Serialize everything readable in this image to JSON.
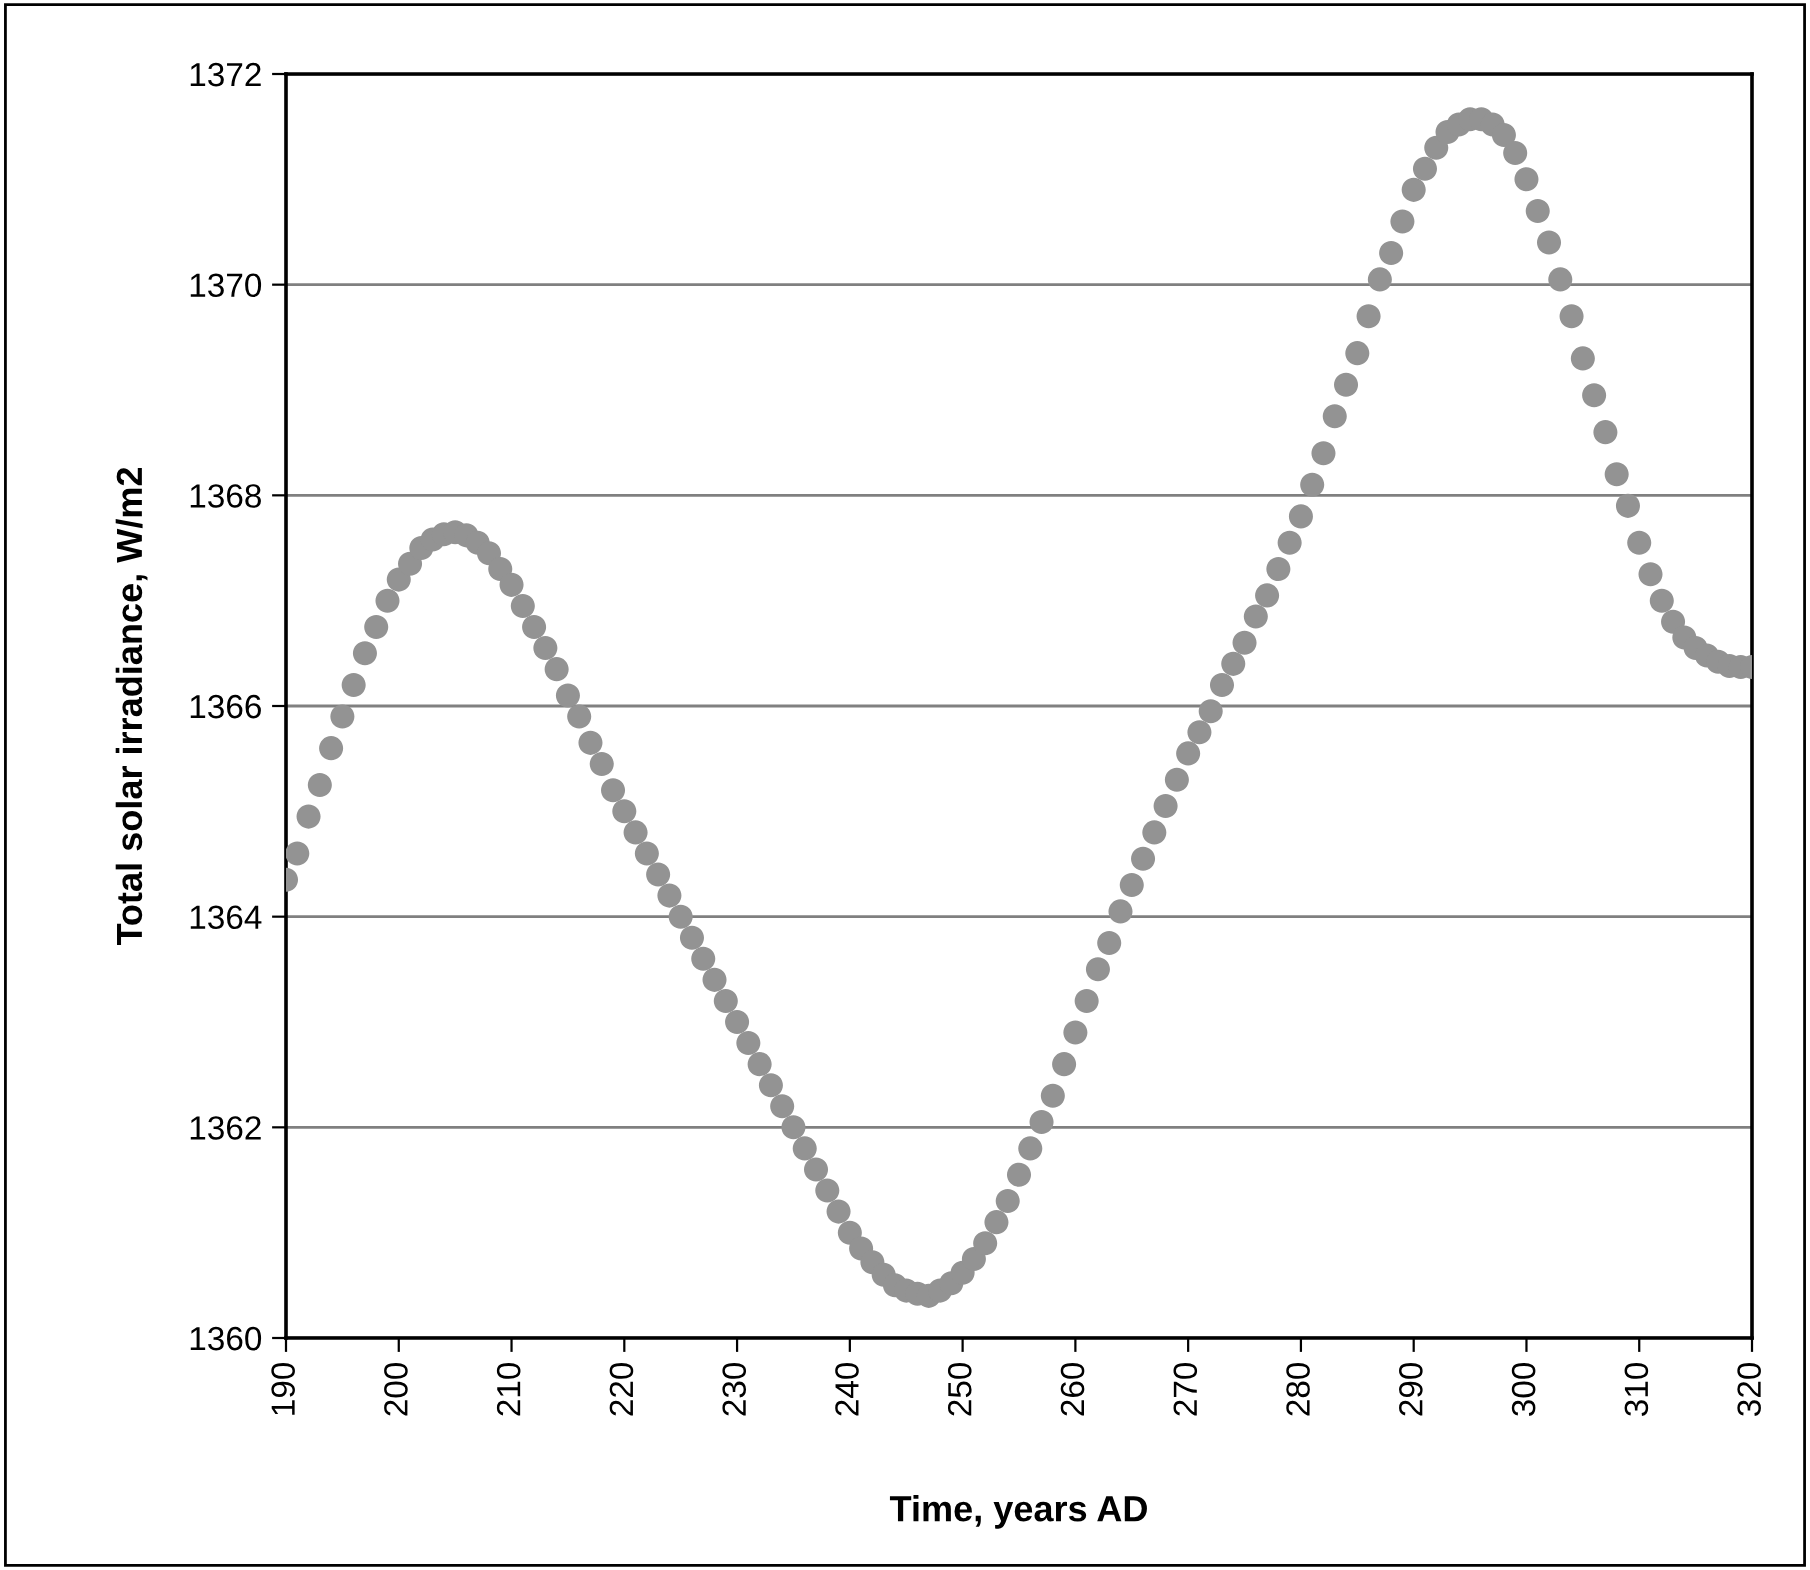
{
  "chart_data": {
    "type": "scatter",
    "xlabel": "Time, years AD",
    "ylabel": "Total solar irradiance, W/m2",
    "x": [
      190,
      191,
      192,
      193,
      194,
      195,
      196,
      197,
      198,
      199,
      200,
      201,
      202,
      203,
      204,
      205,
      206,
      207,
      208,
      209,
      210,
      211,
      212,
      213,
      214,
      215,
      216,
      217,
      218,
      219,
      220,
      221,
      222,
      223,
      224,
      225,
      226,
      227,
      228,
      229,
      230,
      231,
      232,
      233,
      234,
      235,
      236,
      237,
      238,
      239,
      240,
      241,
      242,
      243,
      244,
      245,
      246,
      247,
      248,
      249,
      250,
      251,
      252,
      253,
      254,
      255,
      256,
      257,
      258,
      259,
      260,
      261,
      262,
      263,
      264,
      265,
      266,
      267,
      268,
      269,
      270,
      271,
      272,
      273,
      274,
      275,
      276,
      277,
      278,
      279,
      280,
      281,
      282,
      283,
      284,
      285,
      286,
      287,
      288,
      289,
      290,
      291,
      292,
      293,
      294,
      295,
      296,
      297,
      298,
      299,
      300,
      301,
      302,
      303,
      304,
      305,
      306,
      307,
      308,
      309,
      310,
      311,
      312,
      313,
      314,
      315,
      316,
      317,
      318,
      319,
      320
    ],
    "series": [
      {
        "color": "#939393",
        "values": [
          1364.35,
          1364.6,
          1364.95,
          1365.25,
          1365.6,
          1365.9,
          1366.2,
          1366.5,
          1366.75,
          1367.0,
          1367.2,
          1367.35,
          1367.5,
          1367.58,
          1367.63,
          1367.65,
          1367.62,
          1367.55,
          1367.45,
          1367.3,
          1367.15,
          1366.95,
          1366.75,
          1366.55,
          1366.35,
          1366.1,
          1365.9,
          1365.65,
          1365.45,
          1365.2,
          1365.0,
          1364.8,
          1364.6,
          1364.4,
          1364.2,
          1364.0,
          1363.8,
          1363.6,
          1363.4,
          1363.2,
          1363.0,
          1362.8,
          1362.6,
          1362.4,
          1362.2,
          1362.0,
          1361.8,
          1361.6,
          1361.4,
          1361.2,
          1361.0,
          1360.85,
          1360.72,
          1360.6,
          1360.5,
          1360.45,
          1360.42,
          1360.4,
          1360.45,
          1360.52,
          1360.62,
          1360.75,
          1360.9,
          1361.1,
          1361.3,
          1361.55,
          1361.8,
          1362.05,
          1362.3,
          1362.6,
          1362.9,
          1363.2,
          1363.5,
          1363.75,
          1364.05,
          1364.3,
          1364.55,
          1364.8,
          1365.05,
          1365.3,
          1365.55,
          1365.75,
          1365.95,
          1366.2,
          1366.4,
          1366.6,
          1366.85,
          1367.05,
          1367.3,
          1367.55,
          1367.8,
          1368.1,
          1368.4,
          1368.75,
          1369.05,
          1369.35,
          1369.7,
          1370.05,
          1370.3,
          1370.6,
          1370.9,
          1371.1,
          1371.3,
          1371.45,
          1371.52,
          1371.57,
          1371.57,
          1371.52,
          1371.42,
          1371.25,
          1371.0,
          1370.7,
          1370.4,
          1370.05,
          1369.7,
          1369.3,
          1368.95,
          1368.6,
          1368.2,
          1367.9,
          1367.55,
          1367.25,
          1367.0,
          1366.8,
          1366.65,
          1366.55,
          1366.48,
          1366.42,
          1366.38,
          1366.37,
          1366.37
        ]
      }
    ],
    "xlim": [
      190,
      320
    ],
    "xticks": [
      190,
      200,
      210,
      220,
      230,
      240,
      250,
      260,
      270,
      280,
      290,
      300,
      310,
      320
    ],
    "ylim": [
      1360,
      1372
    ],
    "yticks": [
      1360,
      1362,
      1364,
      1366,
      1368,
      1370,
      1372
    ],
    "grid": "y",
    "marker": "circle",
    "legend": false
  }
}
